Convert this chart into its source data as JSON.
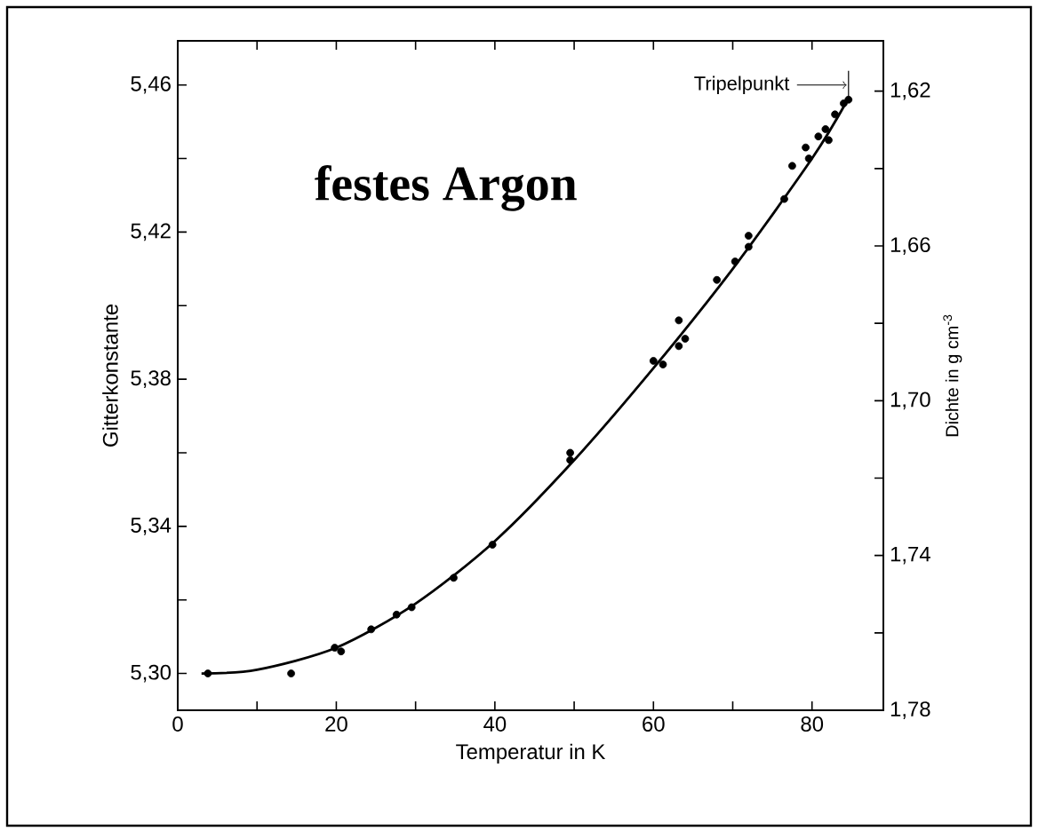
{
  "chart_data": {
    "type": "scatter",
    "title": "festes Argon",
    "xlabel": "Temperatur in K",
    "ylabel": "Gitterkonstante",
    "y2label": "Dichte in g cm$^{-3}$",
    "xlim": [
      0,
      89
    ],
    "ylim": [
      5.29,
      5.472
    ],
    "y2lim": [
      1.78,
      1.607
    ],
    "xticks": [
      0,
      {
        "value": 10,
        "label": null
      },
      20,
      {
        "value": 30,
        "label": null
      },
      40,
      {
        "value": 50,
        "label": null
      },
      60,
      {
        "value": 70,
        "label": null
      },
      80
    ],
    "yticks": [
      {
        "value": 5.3,
        "label": "5,30"
      },
      {
        "value": 5.32,
        "label": null
      },
      {
        "value": 5.34,
        "label": "5,34"
      },
      {
        "value": 5.36,
        "label": null
      },
      {
        "value": 5.38,
        "label": "5,38"
      },
      {
        "value": 5.4,
        "label": null
      },
      {
        "value": 5.42,
        "label": "5,42"
      },
      {
        "value": 5.44,
        "label": null
      },
      {
        "value": 5.46,
        "label": "5,46"
      }
    ],
    "y2ticks": [
      {
        "value": 1.62,
        "label": "1,62"
      },
      {
        "value": 1.64,
        "label": null
      },
      {
        "value": 1.66,
        "label": "1,66"
      },
      {
        "value": 1.68,
        "label": null
      },
      {
        "value": 1.7,
        "label": "1,70"
      },
      {
        "value": 1.72,
        "label": null
      },
      {
        "value": 1.74,
        "label": "1,74"
      },
      {
        "value": 1.76,
        "label": null
      },
      {
        "value": 1.78,
        "label": "1,78"
      }
    ],
    "annotations": [
      "Tripelpunkt"
    ],
    "grid": false,
    "series": [
      {
        "type": "scatter",
        "marker": "circle",
        "color": "#000000",
        "x": [
          3.8,
          14.3,
          19.8,
          20.6,
          24.4,
          27.6,
          29.5,
          34.8,
          39.7,
          49.5,
          49.5,
          60.0,
          61.2,
          63.2,
          63.2,
          64.0,
          68.0,
          70.3,
          72.0,
          72.0,
          76.5,
          77.5,
          79.2,
          79.6,
          80.8,
          81.7,
          82.1,
          82.9,
          84.0,
          84.6
        ],
        "values": [
          5.3,
          5.3,
          5.307,
          5.306,
          5.312,
          5.316,
          5.318,
          5.326,
          5.335,
          5.36,
          5.358,
          5.385,
          5.384,
          5.396,
          5.389,
          5.391,
          5.407,
          5.412,
          5.419,
          5.416,
          5.429,
          5.438,
          5.443,
          5.44,
          5.446,
          5.448,
          5.445,
          5.452,
          5.455,
          5.456
        ]
      },
      {
        "type": "line",
        "color": "#000000",
        "x": [
          3,
          10,
          20,
          30,
          40,
          50,
          60,
          70,
          80,
          84.5
        ],
        "values": [
          5.3,
          5.301,
          5.307,
          5.319,
          5.336,
          5.358,
          5.383,
          5.41,
          5.44,
          5.456
        ]
      }
    ]
  }
}
